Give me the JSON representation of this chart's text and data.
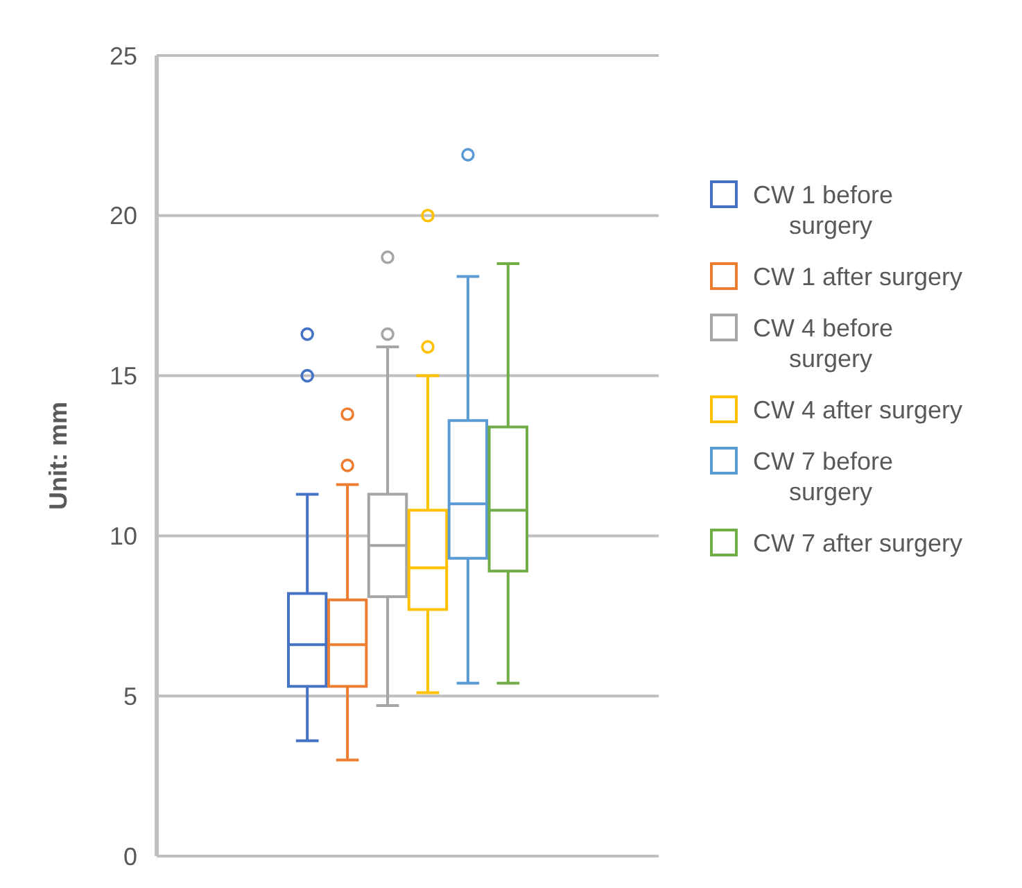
{
  "chart_data": {
    "type": "box",
    "ylabel": "Unit: mm",
    "categories": [
      null
    ],
    "ylim": [
      0,
      25
    ],
    "yticks": [
      0,
      5,
      10,
      15,
      20,
      25
    ],
    "grid": "y",
    "legend": "right",
    "series": [
      {
        "name": "CW 1 before surgery",
        "color": "#4472c4",
        "boxes": [
          {
            "low": 3.6,
            "q1": 5.3,
            "median": 6.6,
            "q3": 8.2,
            "high": 11.3,
            "outliers": [
              15.0,
              16.3
            ]
          }
        ]
      },
      {
        "name": "CW 1 after surgery",
        "color": "#ed7d31",
        "boxes": [
          {
            "low": 3.0,
            "q1": 5.3,
            "median": 6.6,
            "q3": 8.0,
            "high": 11.6,
            "outliers": [
              12.2,
              13.8
            ]
          }
        ]
      },
      {
        "name": "CW 4 before surgery",
        "color": "#a5a5a5",
        "boxes": [
          {
            "low": 4.7,
            "q1": 8.1,
            "median": 9.7,
            "q3": 11.3,
            "high": 15.9,
            "outliers": [
              16.3,
              18.7
            ]
          }
        ]
      },
      {
        "name": "CW 4 after surgery",
        "color": "#ffc000",
        "boxes": [
          {
            "low": 5.1,
            "q1": 7.7,
            "median": 9.0,
            "q3": 10.8,
            "high": 15.0,
            "outliers": [
              15.9,
              20.0
            ]
          }
        ]
      },
      {
        "name": "CW 7 before surgery",
        "color": "#5b9bd5",
        "boxes": [
          {
            "low": 5.4,
            "q1": 9.3,
            "median": 11.0,
            "q3": 13.6,
            "high": 18.1,
            "outliers": [
              21.9
            ]
          }
        ]
      },
      {
        "name": "CW 7 after surgery",
        "color": "#70ad47",
        "boxes": [
          {
            "low": 5.4,
            "q1": 8.9,
            "median": 10.8,
            "q3": 13.4,
            "high": 18.5
          }
        ]
      }
    ]
  }
}
